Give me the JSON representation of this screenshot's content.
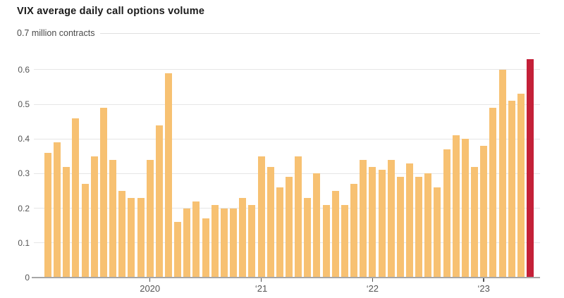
{
  "header": {
    "title": "VIX average daily call options volume",
    "unit_label": "0.7 million contracts"
  },
  "chart_data": {
    "type": "bar",
    "title": "VIX average daily call options volume",
    "ylabel": "million contracts",
    "ylim": [
      0,
      0.7
    ],
    "grid": true,
    "legend": false,
    "y_axis": {
      "top_tick_label": "0.7 million contracts",
      "tick_labels": [
        "0.6",
        "0.5",
        "0.4",
        "0.3",
        "0.2",
        "0.1",
        "0"
      ]
    },
    "x_axis": {
      "ticks": [
        {
          "label": "2020",
          "bar_index": 11
        },
        {
          "label": "‘21",
          "bar_index": 23
        },
        {
          "label": "‘22",
          "bar_index": 35
        },
        {
          "label": "‘23",
          "bar_index": 47
        }
      ]
    },
    "values": [
      0.36,
      0.39,
      0.32,
      0.46,
      0.27,
      0.35,
      0.49,
      0.34,
      0.25,
      0.23,
      0.23,
      0.34,
      0.44,
      0.59,
      0.16,
      0.2,
      0.22,
      0.17,
      0.21,
      0.2,
      0.2,
      0.23,
      0.21,
      0.35,
      0.32,
      0.26,
      0.29,
      0.35,
      0.23,
      0.3,
      0.21,
      0.25,
      0.21,
      0.27,
      0.34,
      0.32,
      0.31,
      0.34,
      0.29,
      0.33,
      0.29,
      0.3,
      0.26,
      0.37,
      0.41,
      0.4,
      0.32,
      0.38,
      0.49,
      0.6,
      0.51,
      0.53,
      0.63
    ],
    "bar_color": "#F7C172",
    "highlight_color": "#C42038",
    "highlight_index": 52
  }
}
